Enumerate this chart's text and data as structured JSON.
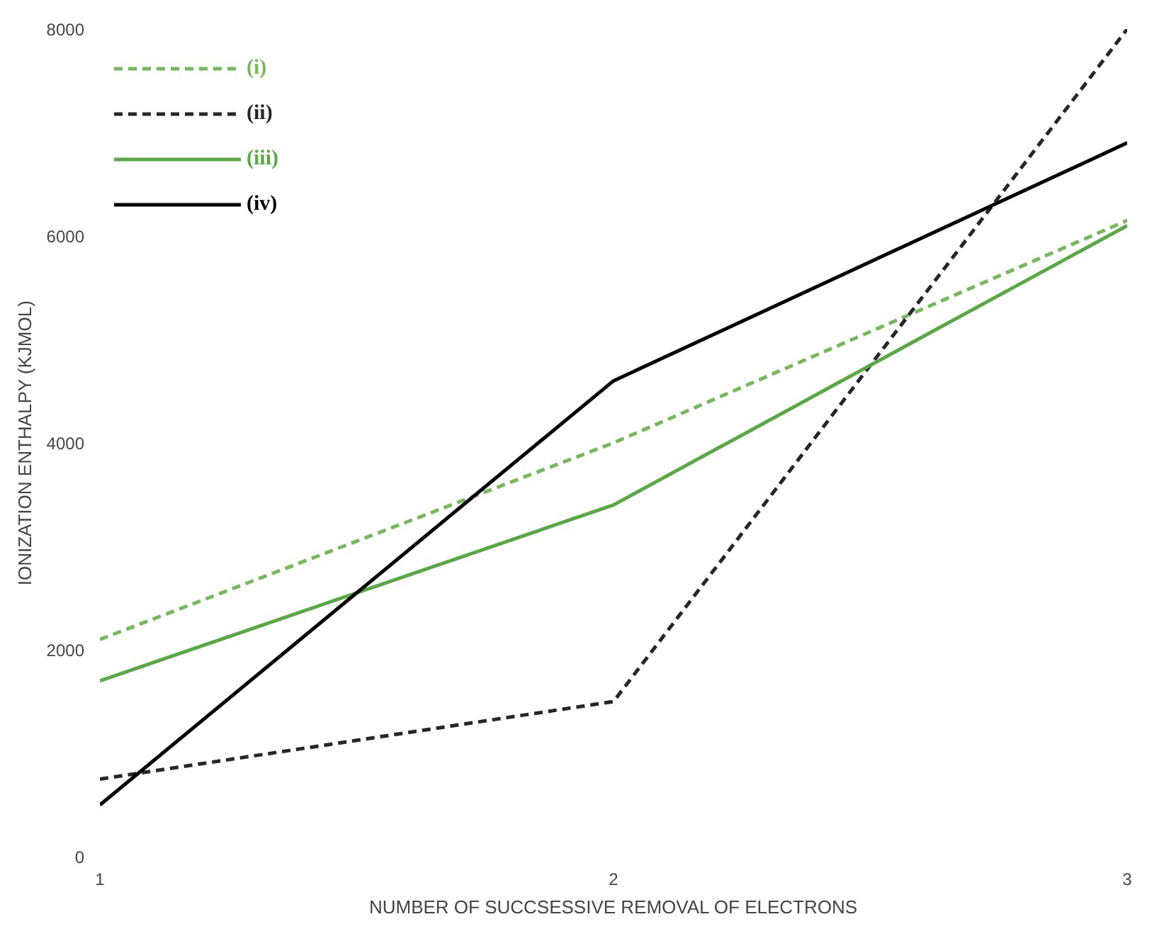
{
  "chart_data": {
    "type": "line",
    "xlabel": "NUMBER OF SUCCSESSIVE REMOVAL OF ELECTRONS",
    "ylabel": "IONIZATION ENTHALPY (KJMOL)",
    "x": [
      1,
      2,
      3
    ],
    "xlim": [
      1,
      3
    ],
    "xticks": [
      1,
      2,
      3
    ],
    "ylim": [
      0,
      8000
    ],
    "yticks": [
      0,
      2000,
      4000,
      6000,
      8000
    ],
    "grid": false,
    "legend": "top left",
    "series": [
      {
        "name": "(i)",
        "color": "#74b95a",
        "line_style": "dashed",
        "values": [
          2100,
          4000,
          6150
        ]
      },
      {
        "name": "(ii)",
        "color": "#262626",
        "line_style": "dashed",
        "values": [
          750,
          1500,
          8000
        ]
      },
      {
        "name": "(iii)",
        "color": "#58a843",
        "line_style": "solid",
        "values": [
          1700,
          3400,
          6100
        ]
      },
      {
        "name": "(iv)",
        "color": "#000000",
        "line_style": "solid",
        "values": [
          500,
          4600,
          6900
        ]
      }
    ]
  }
}
